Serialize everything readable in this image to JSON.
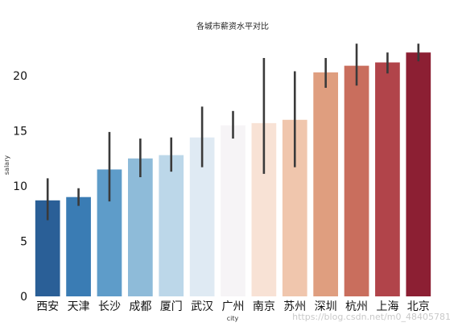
{
  "chart_data": {
    "type": "bar",
    "title": "各城市薪资水平对比",
    "xlabel": "city",
    "ylabel": "salary",
    "ylim": [
      0,
      23.5
    ],
    "yticks": [
      0,
      5,
      10,
      15,
      20
    ],
    "grid": false,
    "categories": [
      "西安",
      "天津",
      "长沙",
      "成都",
      "厦门",
      "武汉",
      "广州",
      "南京",
      "苏州",
      "深圳",
      "杭州",
      "上海",
      "北京"
    ],
    "values": [
      8.7,
      9.0,
      11.5,
      12.5,
      12.8,
      14.4,
      15.5,
      15.7,
      16.0,
      20.3,
      20.9,
      21.2,
      22.1
    ],
    "error_low": [
      6.9,
      8.2,
      8.6,
      10.8,
      11.3,
      11.7,
      14.3,
      11.1,
      11.7,
      18.9,
      19.1,
      20.2,
      21.3
    ],
    "error_high": [
      10.7,
      9.8,
      14.9,
      14.3,
      14.4,
      17.2,
      16.8,
      21.6,
      20.4,
      21.6,
      22.9,
      22.1,
      22.9
    ],
    "colors": [
      "#2a5f97",
      "#3a7cb4",
      "#5e9cc9",
      "#8ebbd9",
      "#bcd7e9",
      "#dfeaf3",
      "#f6f4f6",
      "#f8e2d5",
      "#f0c6ad",
      "#df9e7f",
      "#c96e5d",
      "#b1444a",
      "#8c1f33"
    ],
    "errorbar_color": "#3a3a3a"
  },
  "watermark": "https://blog.csdn.net/m0_48405781"
}
